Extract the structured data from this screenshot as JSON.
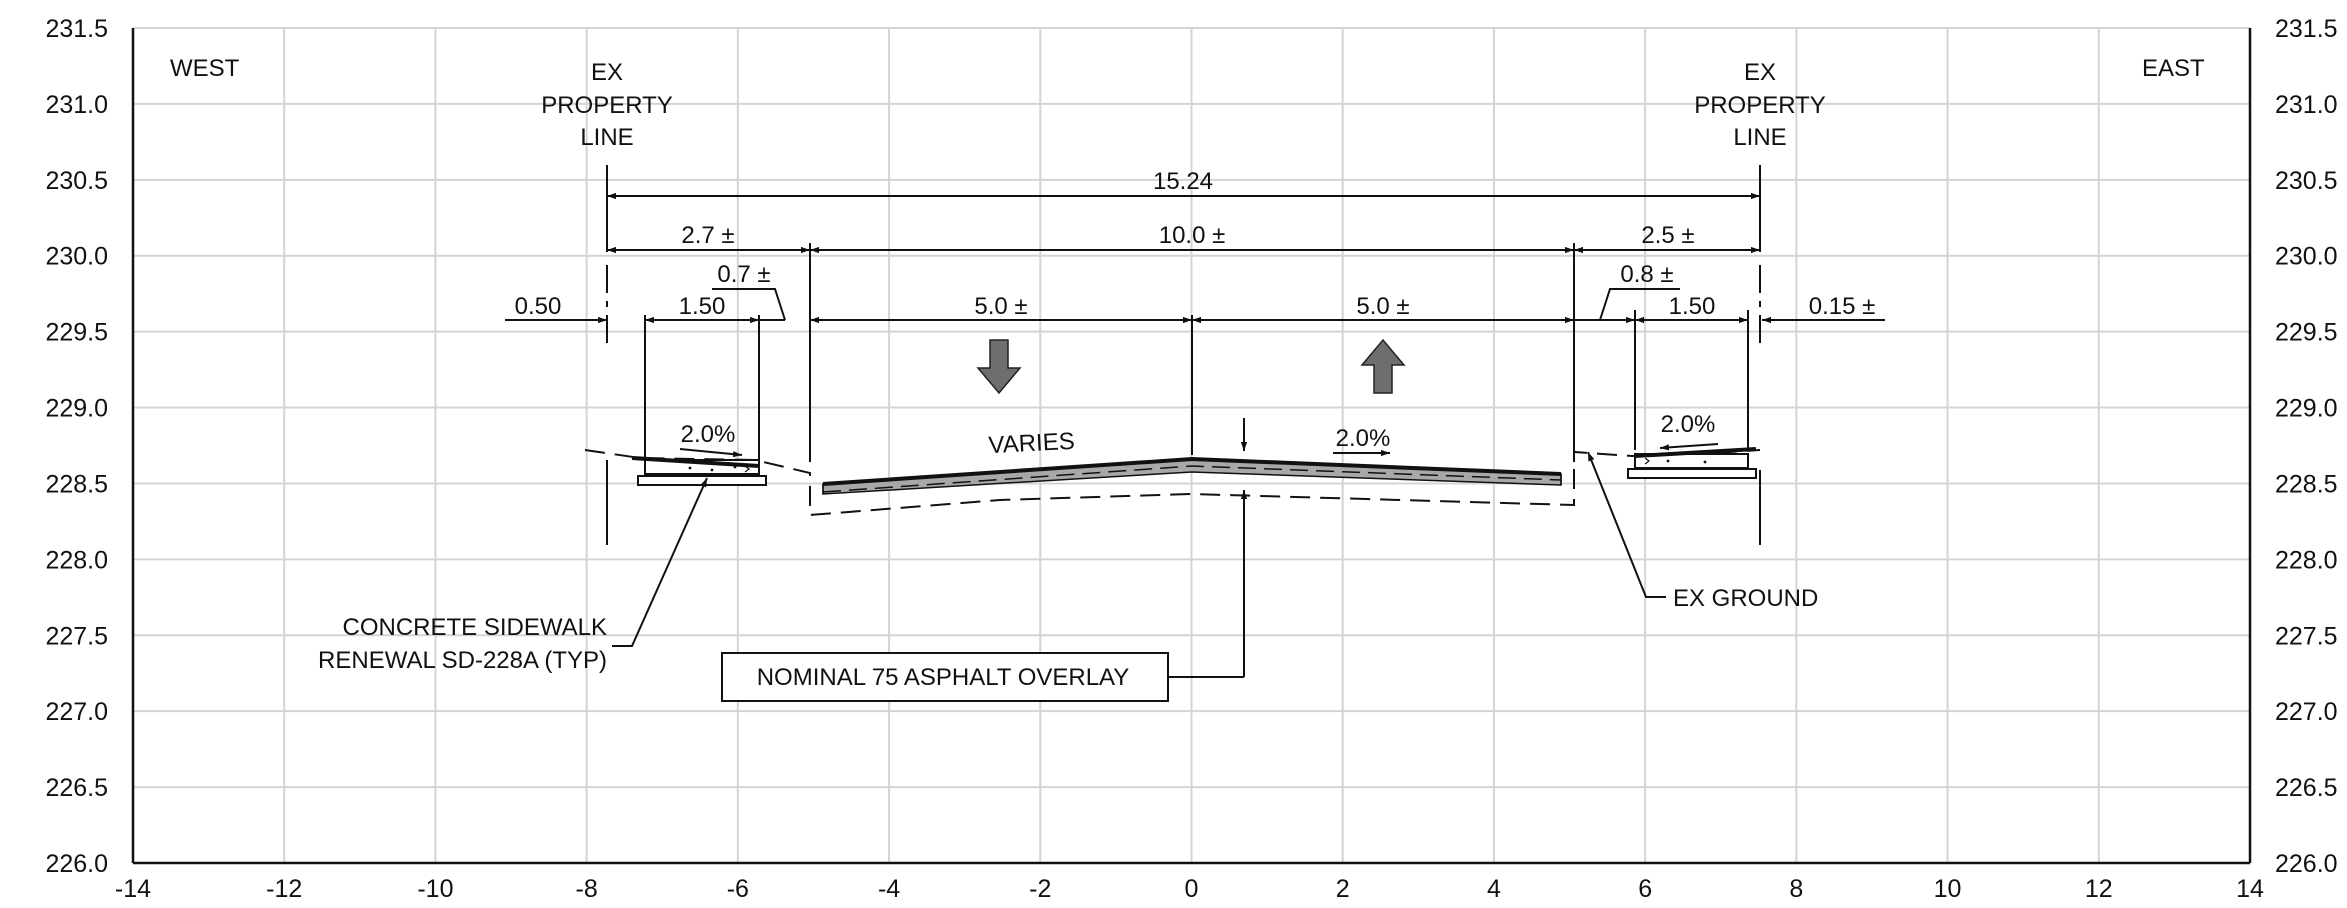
{
  "chart_data": {
    "type": "cross-section",
    "x_range": [
      -14,
      14
    ],
    "y_range": [
      226.0,
      231.5
    ],
    "x_ticks": [
      "-14",
      "-12",
      "-10",
      "-8",
      "-6",
      "-4",
      "-2",
      "0",
      "2",
      "4",
      "6",
      "8",
      "10",
      "12",
      "14"
    ],
    "y_ticks": [
      "226.0",
      "226.5",
      "227.0",
      "227.5",
      "228.0",
      "228.5",
      "229.0",
      "229.5",
      "230.0",
      "230.5",
      "231.0",
      "231.5"
    ],
    "grid": true
  },
  "labels": {
    "west": "WEST",
    "east": "EAST",
    "property_line_west": [
      "EX",
      "PROPERTY",
      "LINE"
    ],
    "property_line_east": [
      "EX",
      "PROPERTY",
      "LINE"
    ],
    "slope_sidewalk_west": "2.0%",
    "slope_sidewalk_east": "2.0%",
    "slope_road_east": "2.0%",
    "varies": "VARIES",
    "ex_ground": "EX GROUND",
    "sidewalk_note": [
      "CONCRETE SIDEWALK",
      "RENEWAL SD-228A (TYP)"
    ],
    "overlay_note": "NOMINAL 75 ASPHALT OVERLAY"
  },
  "dimensions": {
    "overall": "15.24",
    "west_blvd": "2.7 ±",
    "roadway": "10.0 ±",
    "east_blvd": "2.5 ±",
    "west_offset": "0.50",
    "west_sidewalk": "1.50",
    "west_strip": "0.7 ±",
    "west_lane": "5.0 ±",
    "east_lane": "5.0 ±",
    "east_strip": "0.8 ±",
    "east_sidewalk": "1.50",
    "east_offset": "0.15 ±"
  },
  "colors": {
    "grid": "#d4d4d4",
    "ink": "#111111",
    "asphalt": "#a8a8a8",
    "arrow": "#6e6e6e"
  }
}
